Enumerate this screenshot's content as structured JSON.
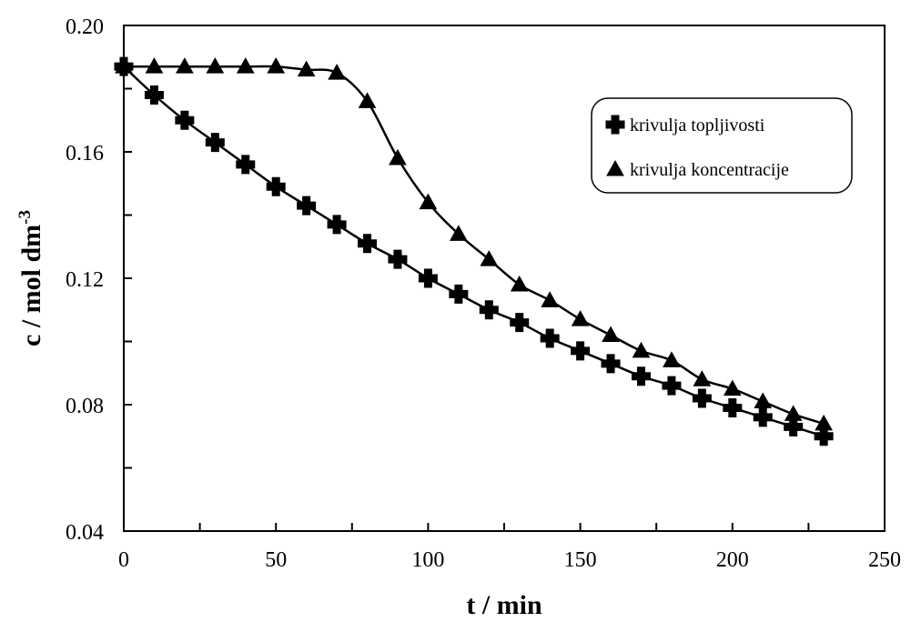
{
  "chart_data": {
    "type": "line",
    "title": "",
    "xlabel": "t / min",
    "ylabel": "c / mol dm",
    "ylabel_superscript": "-3",
    "xlim": [
      0,
      250
    ],
    "ylim": [
      0.04,
      0.2
    ],
    "x_ticks": [
      {
        "value": 0,
        "label": "0"
      },
      {
        "value": 50,
        "label": "50"
      },
      {
        "value": 100,
        "label": "100"
      },
      {
        "value": 150,
        "label": "150"
      },
      {
        "value": 200,
        "label": "200"
      },
      {
        "value": 250,
        "label": "250"
      }
    ],
    "y_ticks": [
      {
        "value": 0.04,
        "label": "0.04"
      },
      {
        "value": 0.08,
        "label": "0.08"
      },
      {
        "value": 0.12,
        "label": "0.12"
      },
      {
        "value": 0.16,
        "label": "0.16"
      },
      {
        "value": 0.2,
        "label": "0.20"
      }
    ],
    "grid": false,
    "legend_position": "top-right",
    "series": [
      {
        "name": "krivulja topljivosti",
        "marker": "plus",
        "x": [
          0,
          10,
          20,
          30,
          40,
          50,
          60,
          70,
          80,
          90,
          100,
          110,
          120,
          130,
          140,
          150,
          160,
          170,
          180,
          190,
          200,
          210,
          220,
          230
        ],
        "y": [
          0.187,
          0.178,
          0.17,
          0.163,
          0.156,
          0.149,
          0.143,
          0.137,
          0.131,
          0.126,
          0.12,
          0.115,
          0.11,
          0.106,
          0.101,
          0.097,
          0.093,
          0.089,
          0.086,
          0.082,
          0.079,
          0.076,
          0.073,
          0.07
        ]
      },
      {
        "name": "krivulja koncentracije",
        "marker": "triangle",
        "x": [
          0,
          10,
          20,
          30,
          40,
          50,
          60,
          70,
          80,
          90,
          100,
          110,
          120,
          130,
          140,
          150,
          160,
          170,
          180,
          190,
          200,
          210,
          220,
          230
        ],
        "y": [
          0.187,
          0.187,
          0.187,
          0.187,
          0.187,
          0.187,
          0.186,
          0.185,
          0.176,
          0.158,
          0.144,
          0.134,
          0.126,
          0.118,
          0.113,
          0.107,
          0.102,
          0.097,
          0.094,
          0.088,
          0.085,
          0.081,
          0.077,
          0.074
        ]
      }
    ]
  }
}
